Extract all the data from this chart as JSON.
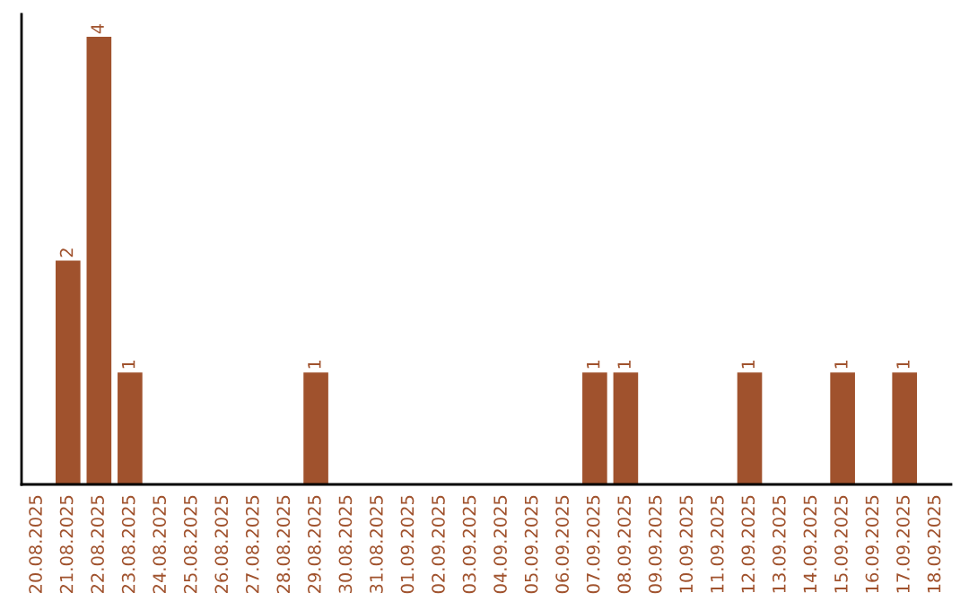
{
  "chart_data": {
    "type": "bar",
    "categories": [
      "20.08.2025",
      "21.08.2025",
      "22.08.2025",
      "23.08.2025",
      "24.08.2025",
      "25.08.2025",
      "26.08.2025",
      "27.08.2025",
      "28.08.2025",
      "29.08.2025",
      "30.08.2025",
      "31.08.2025",
      "01.09.2025",
      "02.09.2025",
      "03.09.2025",
      "04.09.2025",
      "05.09.2025",
      "06.09.2025",
      "07.09.2025",
      "08.09.2025",
      "09.09.2025",
      "10.09.2025",
      "11.09.2025",
      "12.09.2025",
      "13.09.2025",
      "14.09.2025",
      "15.09.2025",
      "16.09.2025",
      "17.09.2025",
      "18.09.2025"
    ],
    "values": [
      0,
      2,
      4,
      1,
      0,
      0,
      0,
      0,
      0,
      1,
      0,
      0,
      0,
      0,
      0,
      0,
      0,
      0,
      1,
      1,
      0,
      0,
      0,
      1,
      0,
      0,
      1,
      0,
      1,
      0
    ],
    "value_labels": [
      null,
      "2",
      "4",
      "1",
      null,
      null,
      null,
      null,
      null,
      "1",
      null,
      null,
      null,
      null,
      null,
      null,
      null,
      null,
      "1",
      "1",
      null,
      null,
      null,
      "1",
      null,
      null,
      "1",
      null,
      "1",
      null
    ],
    "color": "#a0522d",
    "ylim": [
      0,
      4.2
    ],
    "tick_labels": "x",
    "grid": false,
    "legend": false
  }
}
